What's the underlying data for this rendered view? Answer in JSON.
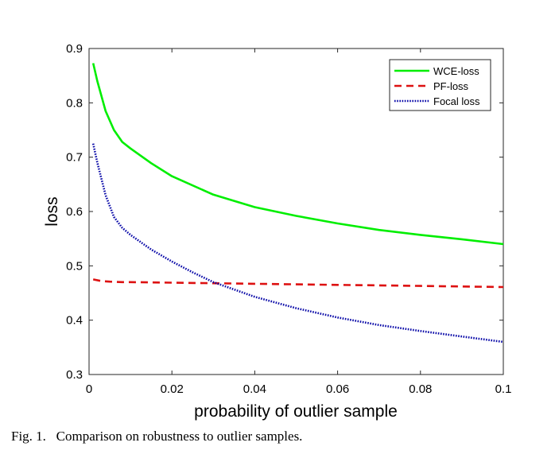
{
  "caption": "Fig. 1.   Comparison on robustness to outlier samples.",
  "chart_data": {
    "type": "line",
    "xlabel": "probability of outlier sample",
    "ylabel": "loss",
    "xlim": [
      0,
      0.1
    ],
    "ylim": [
      0.3,
      0.9
    ],
    "xticks": [
      0,
      0.02,
      0.04,
      0.06,
      0.08,
      0.1
    ],
    "xtick_labels": [
      "0",
      "0.02",
      "0.04",
      "0.06",
      "0.08",
      "0.1"
    ],
    "yticks": [
      0.3,
      0.4,
      0.5,
      0.6,
      0.7,
      0.8,
      0.9
    ],
    "ytick_labels": [
      "0.3",
      "0.4",
      "0.5",
      "0.6",
      "0.7",
      "0.8",
      "0.9"
    ],
    "grid": false,
    "legend_position": "top-right",
    "series": [
      {
        "name": "WCE-loss",
        "color": "#00ee00",
        "style": "solid",
        "x": [
          0.001,
          0.002,
          0.004,
          0.006,
          0.008,
          0.01,
          0.015,
          0.02,
          0.03,
          0.04,
          0.05,
          0.06,
          0.07,
          0.08,
          0.09,
          0.1
        ],
        "y": [
          0.873,
          0.84,
          0.785,
          0.75,
          0.728,
          0.716,
          0.689,
          0.665,
          0.631,
          0.608,
          0.592,
          0.578,
          0.566,
          0.557,
          0.549,
          0.54
        ]
      },
      {
        "name": "PF-loss",
        "color": "#dd1111",
        "style": "dashed",
        "x": [
          0.001,
          0.003,
          0.005,
          0.008,
          0.01,
          0.02,
          0.03,
          0.04,
          0.05,
          0.06,
          0.07,
          0.08,
          0.09,
          0.1
        ],
        "y": [
          0.475,
          0.472,
          0.471,
          0.47,
          0.47,
          0.469,
          0.468,
          0.467,
          0.466,
          0.465,
          0.464,
          0.463,
          0.462,
          0.461
        ]
      },
      {
        "name": "Focal loss",
        "color": "#0a0aa8",
        "style": "dotted",
        "x": [
          0.001,
          0.002,
          0.004,
          0.006,
          0.008,
          0.01,
          0.015,
          0.02,
          0.025,
          0.03,
          0.04,
          0.05,
          0.06,
          0.07,
          0.08,
          0.09,
          0.1
        ],
        "y": [
          0.725,
          0.69,
          0.63,
          0.59,
          0.57,
          0.557,
          0.53,
          0.508,
          0.488,
          0.47,
          0.443,
          0.422,
          0.405,
          0.391,
          0.38,
          0.37,
          0.36
        ]
      }
    ]
  }
}
